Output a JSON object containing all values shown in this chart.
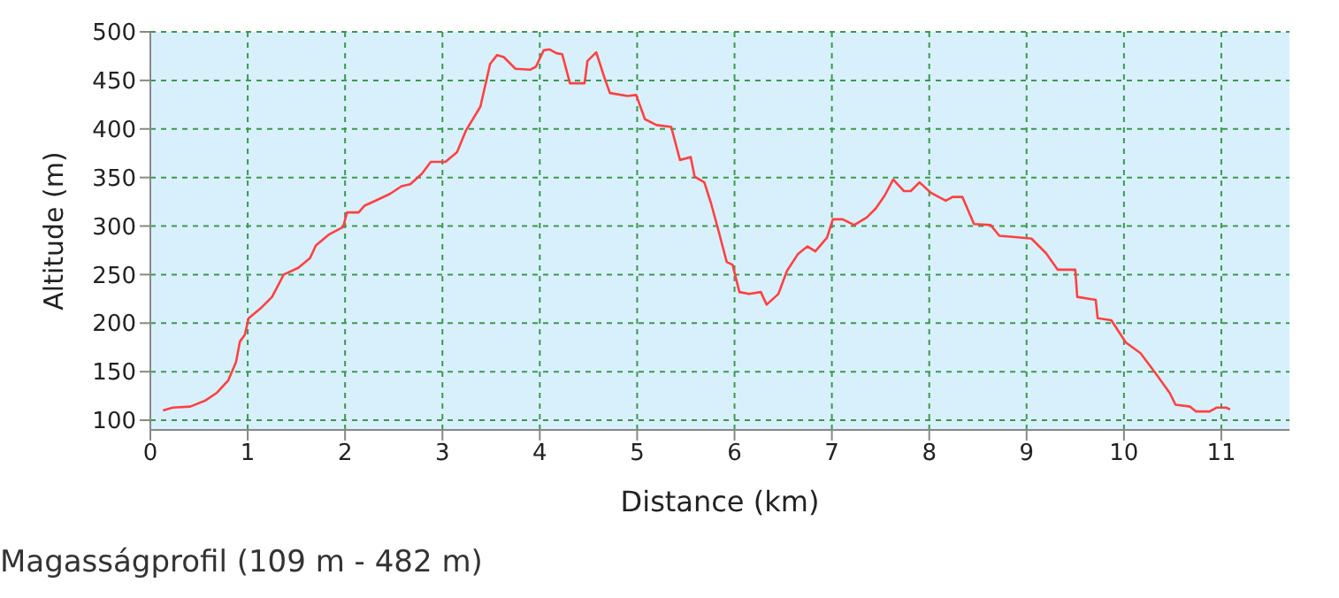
{
  "chart_data": {
    "type": "line",
    "xlabel": "Distance (km)",
    "ylabel": "Altitude (m)",
    "annotations": [
      "Magasságprofil (109 m - 482 m)"
    ],
    "x": [
      0.13,
      0.23,
      0.41,
      0.56,
      0.68,
      0.8,
      0.88,
      0.92,
      0.97,
      1.01,
      1.13,
      1.25,
      1.37,
      1.52,
      1.64,
      1.7,
      1.83,
      1.98,
      2.02,
      2.14,
      2.2,
      2.31,
      2.46,
      2.58,
      2.67,
      2.79,
      2.88,
      3.03,
      3.15,
      3.24,
      3.39,
      3.49,
      3.56,
      3.63,
      3.75,
      3.9,
      3.96,
      4.04,
      4.1,
      4.17,
      4.23,
      4.31,
      4.46,
      4.49,
      4.58,
      4.66,
      4.72,
      4.9,
      4.99,
      5.08,
      5.2,
      5.35,
      5.44,
      5.55,
      5.59,
      5.69,
      5.76,
      5.82,
      5.87,
      5.92,
      5.98,
      6.05,
      6.15,
      6.27,
      6.33,
      6.45,
      6.54,
      6.65,
      6.75,
      6.83,
      6.95,
      7.01,
      7.11,
      7.23,
      7.36,
      7.45,
      7.54,
      7.63,
      7.74,
      7.81,
      7.9,
      8.02,
      8.17,
      8.24,
      8.34,
      8.46,
      8.63,
      8.72,
      8.96,
      9.05,
      9.2,
      9.32,
      9.5,
      9.52,
      9.71,
      9.73,
      9.87,
      10.02,
      10.17,
      10.32,
      10.47,
      10.53,
      10.68,
      10.74,
      10.88,
      10.95,
      11.05,
      11.09
    ],
    "series": [
      {
        "color": "#ff4040",
        "values": [
          110,
          113,
          114,
          120,
          128,
          141,
          160,
          181,
          188,
          205,
          215,
          227,
          250,
          257,
          267,
          280,
          291,
          299,
          314,
          314,
          321,
          326,
          333,
          341,
          343,
          354,
          366,
          366,
          376,
          398,
          423,
          467,
          476,
          474,
          462,
          461,
          464,
          481,
          482,
          478,
          477,
          447,
          447,
          470,
          479,
          454,
          437,
          434,
          435,
          410,
          404,
          402,
          368,
          371,
          351,
          345,
          323,
          301,
          282,
          263,
          260,
          232,
          230,
          232,
          219,
          230,
          254,
          271,
          279,
          274,
          288,
          307,
          307,
          301,
          309,
          318,
          331,
          348,
          336,
          336,
          345,
          334,
          326,
          330,
          330,
          302,
          301,
          290,
          288,
          287,
          272,
          255,
          255,
          227,
          224,
          205,
          203,
          180,
          169,
          149,
          128,
          116,
          114,
          109,
          109,
          113,
          113,
          111
        ]
      }
    ],
    "xlim": [
      0,
      11.7
    ],
    "xticks": [
      0,
      1,
      2,
      3,
      4,
      5,
      6,
      7,
      8,
      9,
      10,
      11
    ],
    "ylim": [
      90,
      500
    ],
    "yticks": [
      100,
      150,
      200,
      250,
      300,
      350,
      400,
      450,
      500
    ],
    "grid": true,
    "marker": "none",
    "line_style": "solid"
  }
}
